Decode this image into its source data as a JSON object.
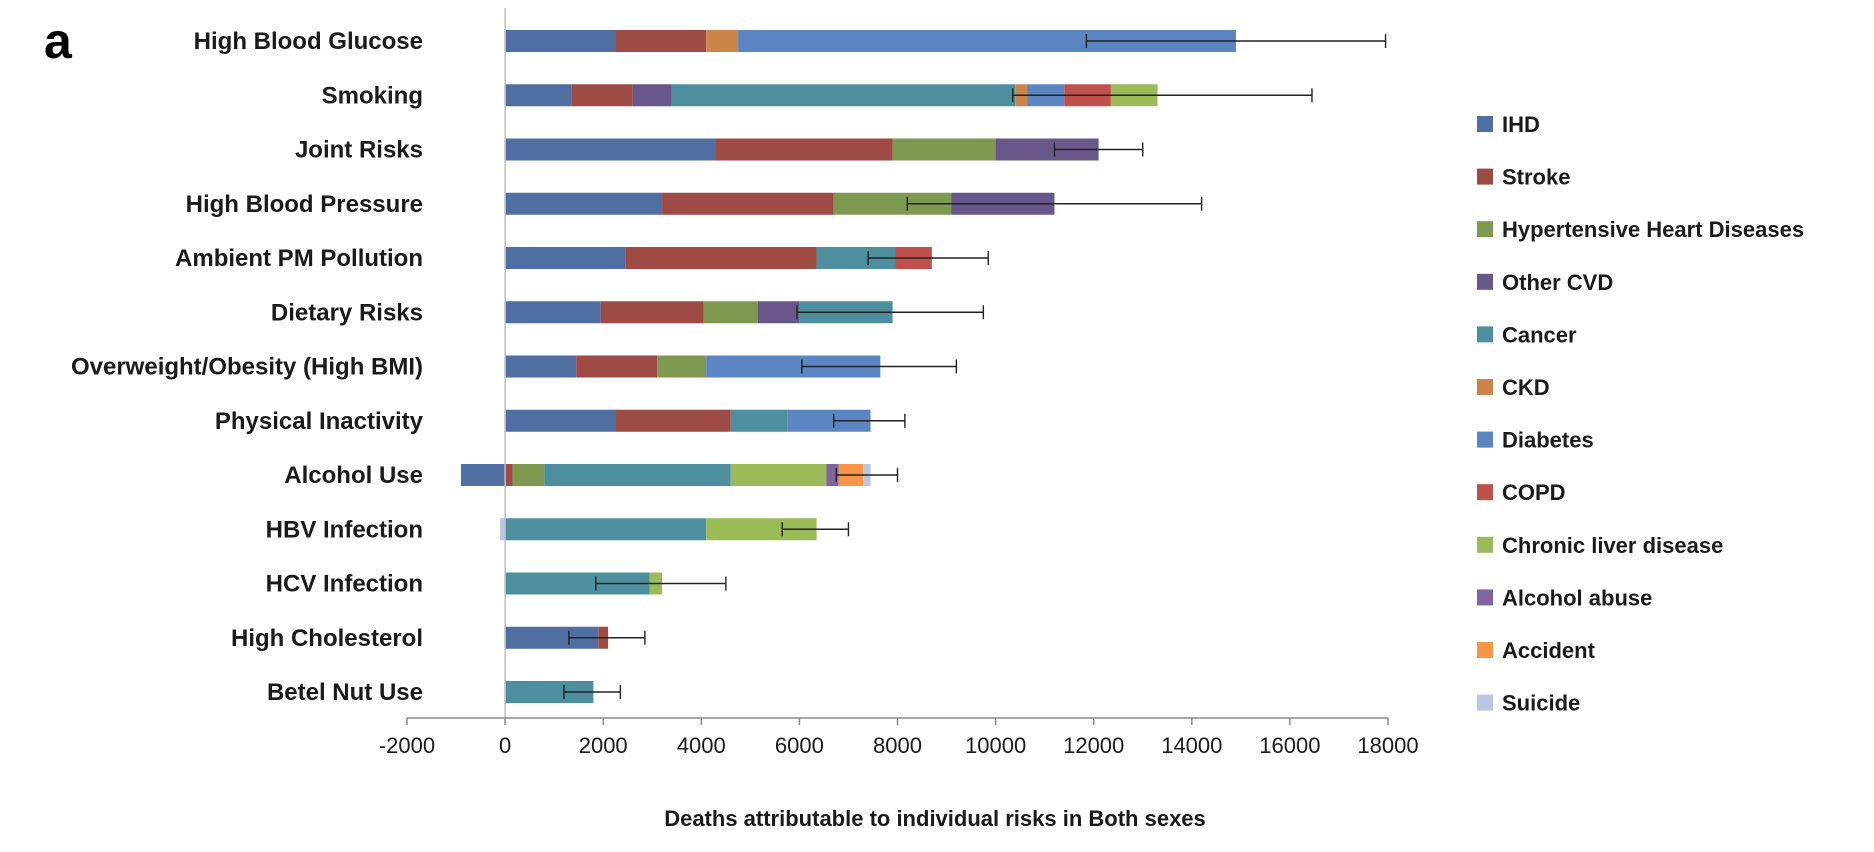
{
  "panel_label": "a",
  "chart_data": {
    "type": "bar",
    "orientation": "horizontal",
    "stacked": true,
    "title": "",
    "xlabel": "Deaths attributable to individual risks in Both sexes",
    "ylabel": "",
    "xlim": [
      -2000,
      18000
    ],
    "xticks": [
      -2000,
      0,
      2000,
      4000,
      6000,
      8000,
      10000,
      12000,
      14000,
      16000,
      18000
    ],
    "xtick_labels": [
      "-2000",
      "0",
      "2000",
      "4000",
      "6000",
      "8000",
      "10000",
      "12000",
      "14000",
      "16000",
      "18000"
    ],
    "grid": false,
    "legend_position": "right",
    "categories": [
      "High Blood Glucose",
      "Smoking",
      "Joint Risks",
      "High Blood Pressure",
      "Ambient PM Pollution",
      "Dietary Risks",
      "Overweight/Obesity (High BMI)",
      "Physical Inactivity",
      "Alcohol Use",
      "HBV Infection",
      "HCV Infection",
      "High Cholesterol",
      "Betel Nut Use"
    ],
    "series": [
      {
        "name": "IHD",
        "color": "#4f6fa3",
        "values": [
          2250,
          1350,
          4300,
          3200,
          2450,
          1950,
          1450,
          2250,
          -900,
          0,
          0,
          1900,
          0
        ]
      },
      {
        "name": "Stroke",
        "color": "#9e4a45",
        "values": [
          1850,
          1250,
          3600,
          3500,
          3900,
          2100,
          1650,
          2350,
          150,
          0,
          0,
          200,
          0
        ]
      },
      {
        "name": "Hypertensive Heart Diseases",
        "color": "#7f9850",
        "values": [
          0,
          0,
          2100,
          2400,
          0,
          1100,
          1000,
          0,
          650,
          0,
          0,
          0,
          0
        ]
      },
      {
        "name": "Other CVD",
        "color": "#67578a",
        "values": [
          0,
          800,
          2100,
          2100,
          0,
          850,
          0,
          0,
          0,
          0,
          0,
          0,
          0
        ]
      },
      {
        "name": "Cancer",
        "color": "#4d8f9f",
        "values": [
          0,
          7000,
          0,
          0,
          1600,
          1900,
          0,
          1150,
          3800,
          4100,
          2950,
          0,
          1800
        ]
      },
      {
        "name": "CKD",
        "color": "#cc8448",
        "values": [
          650,
          250,
          0,
          0,
          0,
          0,
          0,
          0,
          0,
          0,
          0,
          0,
          0
        ]
      },
      {
        "name": "Diabetes",
        "color": "#5b86c3",
        "values": [
          10150,
          750,
          0,
          0,
          0,
          0,
          3550,
          1700,
          0,
          0,
          0,
          0,
          0
        ]
      },
      {
        "name": "COPD",
        "color": "#c0504d",
        "values": [
          0,
          950,
          0,
          0,
          750,
          0,
          0,
          0,
          0,
          0,
          0,
          0,
          0
        ]
      },
      {
        "name": "Chronic liver disease",
        "color": "#9bbb59",
        "values": [
          0,
          950,
          0,
          0,
          0,
          0,
          0,
          0,
          1950,
          2250,
          250,
          0,
          0
        ]
      },
      {
        "name": "Alcohol abuse",
        "color": "#8064a2",
        "values": [
          0,
          0,
          0,
          0,
          0,
          0,
          0,
          0,
          250,
          0,
          0,
          0,
          0
        ]
      },
      {
        "name": "Accident",
        "color": "#f79646",
        "values": [
          0,
          0,
          0,
          0,
          0,
          0,
          0,
          0,
          500,
          0,
          0,
          0,
          0
        ]
      },
      {
        "name": "Suicide",
        "color": "#b9c7e0",
        "values": [
          0,
          0,
          0,
          0,
          0,
          0,
          0,
          0,
          150,
          -100,
          0,
          0,
          0
        ]
      }
    ],
    "error_bars": [
      {
        "low": 11850,
        "high": 17950
      },
      {
        "low": 10350,
        "high": 16450
      },
      {
        "low": 11200,
        "high": 13000
      },
      {
        "low": 8200,
        "high": 14200
      },
      {
        "low": 7400,
        "high": 9850
      },
      {
        "low": 5950,
        "high": 9750
      },
      {
        "low": 6050,
        "high": 9200
      },
      {
        "low": 6700,
        "high": 8150
      },
      {
        "low": 6750,
        "high": 8000
      },
      {
        "low": 5650,
        "high": 7000
      },
      {
        "low": 1850,
        "high": 4500
      },
      {
        "low": 1300,
        "high": 2850
      },
      {
        "low": 1200,
        "high": 2350
      }
    ]
  }
}
